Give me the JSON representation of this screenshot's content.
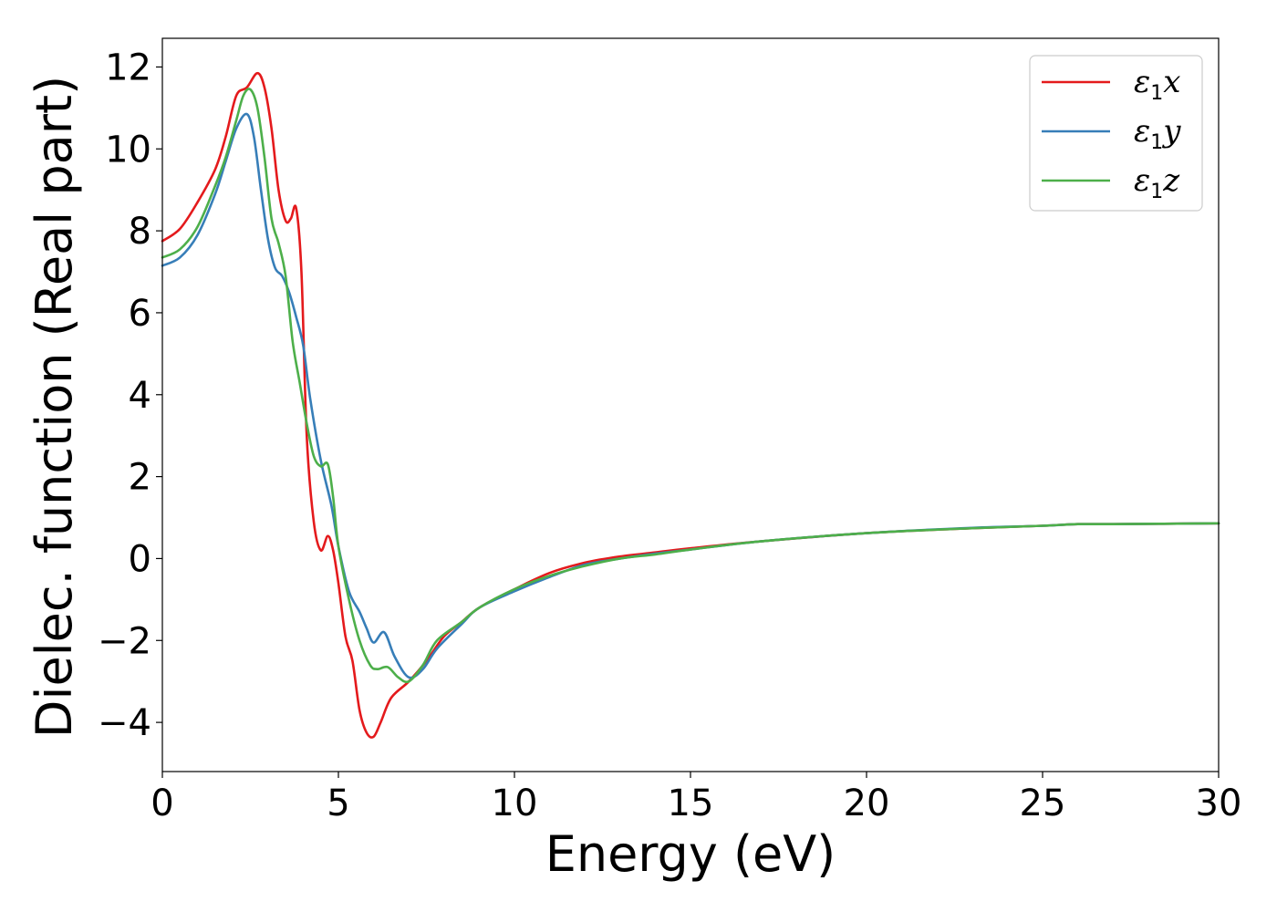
{
  "chart_data": {
    "type": "line",
    "title": "",
    "xlabel": "Energy (eV)",
    "ylabel": "Dielec. function (Real part)",
    "xlim": [
      0,
      30
    ],
    "ylim": [
      -5.2,
      12.7
    ],
    "x_ticks": [
      0,
      5,
      10,
      15,
      20,
      25,
      30
    ],
    "y_ticks": [
      -4,
      -2,
      0,
      2,
      4,
      6,
      8,
      10,
      12
    ],
    "x_tick_labels": [
      "0",
      "5",
      "10",
      "15",
      "20",
      "25",
      "30"
    ],
    "y_tick_labels": [
      "−4",
      "−2",
      "0",
      "2",
      "4",
      "6",
      "8",
      "10",
      "12"
    ],
    "grid": false,
    "legend_position": "top-right",
    "series": [
      {
        "name": "ε1x",
        "symbol": "ε",
        "subscript": "1",
        "axis": "x",
        "color": "#e41a1c",
        "x": [
          0,
          0.5,
          1.0,
          1.5,
          1.8,
          2.1,
          2.4,
          2.7,
          2.9,
          3.1,
          3.3,
          3.5,
          3.65,
          3.8,
          3.95,
          4.1,
          4.3,
          4.5,
          4.7,
          4.85,
          5.0,
          5.2,
          5.4,
          5.6,
          5.8,
          6.0,
          6.2,
          6.5,
          7.0,
          7.5,
          8.0,
          8.5,
          9.0,
          10.0,
          11.0,
          12.0,
          13.0,
          14.0,
          15.0,
          17.0,
          20.0,
          23.0,
          25.0,
          26.0,
          27.0,
          30.0
        ],
        "y": [
          7.75,
          8.05,
          8.7,
          9.5,
          10.3,
          11.3,
          11.5,
          11.85,
          11.5,
          10.5,
          9.0,
          8.25,
          8.3,
          8.55,
          7.0,
          3.0,
          0.9,
          0.2,
          0.55,
          0.2,
          -0.6,
          -1.9,
          -2.5,
          -3.7,
          -4.25,
          -4.35,
          -4.0,
          -3.4,
          -3.0,
          -2.5,
          -1.9,
          -1.55,
          -1.2,
          -0.75,
          -0.35,
          -0.1,
          0.05,
          0.15,
          0.25,
          0.42,
          0.62,
          0.74,
          0.8,
          0.84,
          0.84,
          0.86
        ]
      },
      {
        "name": "ε1y",
        "symbol": "ε",
        "subscript": "1",
        "axis": "y",
        "color": "#377eb8",
        "x": [
          0,
          0.5,
          1.0,
          1.5,
          1.8,
          2.1,
          2.4,
          2.6,
          2.8,
          3.0,
          3.2,
          3.4,
          3.6,
          3.8,
          4.0,
          4.2,
          4.5,
          4.8,
          5.0,
          5.3,
          5.6,
          5.8,
          6.0,
          6.3,
          6.6,
          7.0,
          7.4,
          7.8,
          8.5,
          9.0,
          10.0,
          11.0,
          12.0,
          13.0,
          14.0,
          15.0,
          17.0,
          20.0,
          23.0,
          25.0,
          26.0,
          27.0,
          30.0
        ],
        "y": [
          7.15,
          7.35,
          7.9,
          8.9,
          9.7,
          10.5,
          10.85,
          10.3,
          9.0,
          7.8,
          7.1,
          6.9,
          6.5,
          5.9,
          5.2,
          3.9,
          2.4,
          1.3,
          0.3,
          -0.8,
          -1.3,
          -1.7,
          -2.05,
          -1.8,
          -2.4,
          -2.9,
          -2.7,
          -2.2,
          -1.6,
          -1.2,
          -0.8,
          -0.45,
          -0.15,
          0.0,
          0.12,
          0.22,
          0.42,
          0.62,
          0.75,
          0.8,
          0.84,
          0.84,
          0.86
        ]
      },
      {
        "name": "ε1z",
        "symbol": "ε",
        "subscript": "1",
        "axis": "z",
        "color": "#4daf4a",
        "x": [
          0,
          0.5,
          1.0,
          1.5,
          1.8,
          2.1,
          2.3,
          2.5,
          2.7,
          2.9,
          3.1,
          3.3,
          3.5,
          3.7,
          3.9,
          4.1,
          4.3,
          4.5,
          4.7,
          4.85,
          5.0,
          5.3,
          5.6,
          5.9,
          6.1,
          6.4,
          6.7,
          7.0,
          7.4,
          7.8,
          8.5,
          9.0,
          10.0,
          11.0,
          12.0,
          13.0,
          14.0,
          15.0,
          17.0,
          20.0,
          23.0,
          25.0,
          26.0,
          27.0,
          30.0
        ],
        "y": [
          7.35,
          7.55,
          8.1,
          9.1,
          9.8,
          10.7,
          11.3,
          11.45,
          11.0,
          9.8,
          8.3,
          7.7,
          6.9,
          5.3,
          4.3,
          3.3,
          2.5,
          2.25,
          2.3,
          1.5,
          0.3,
          -1.0,
          -2.0,
          -2.6,
          -2.7,
          -2.65,
          -2.9,
          -3.0,
          -2.6,
          -2.0,
          -1.55,
          -1.2,
          -0.75,
          -0.42,
          -0.18,
          0.0,
          0.1,
          0.22,
          0.42,
          0.62,
          0.74,
          0.8,
          0.84,
          0.84,
          0.86
        ]
      }
    ]
  }
}
